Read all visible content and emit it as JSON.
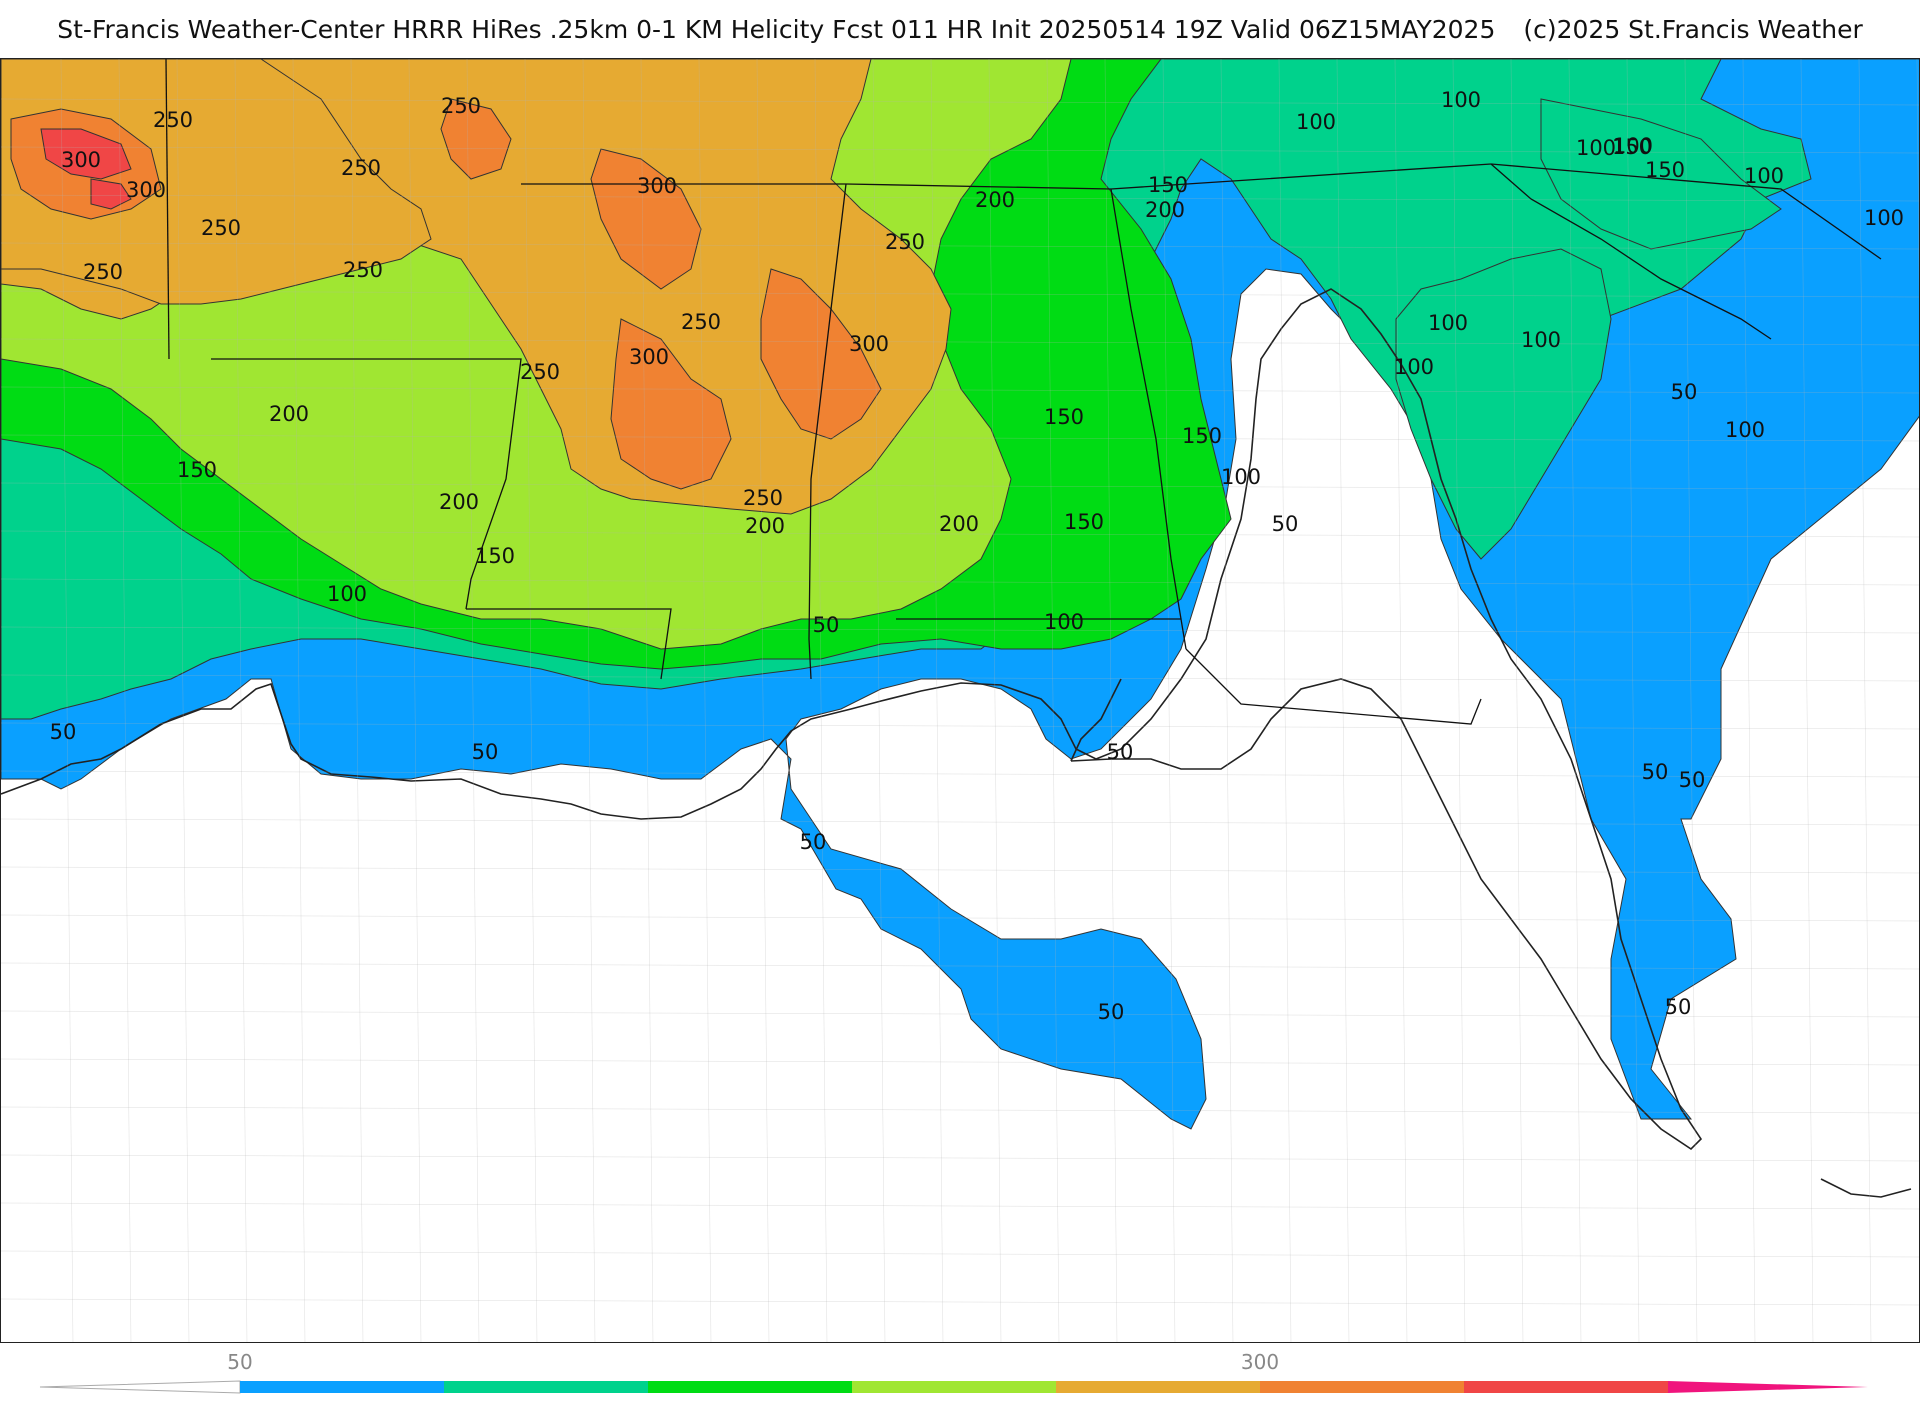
{
  "title": {
    "main": "St-Francis Weather-Center HRRR HiRes .25km 0-1 KM Helicity Fcst 011 HR Init 20250514 19Z  Valid 06Z15MAY2025",
    "copyright": "(c)2025 St.Francis Weather"
  },
  "colors": {
    "c50": "#0aa0ff",
    "c100": "#00d28c",
    "c150": "#00dc14",
    "c200": "#a0e632",
    "c250": "#e6aa32",
    "c300": "#f08232",
    "c350": "#f04646",
    "c400": "#f0147d",
    "land_outline": "#222222",
    "county_lines": "#b4b4b4",
    "state_lines": "#111111"
  },
  "contour_labels": [
    {
      "text": "250"
    },
    {
      "text": "250"
    },
    {
      "text": "300"
    },
    {
      "text": "300"
    },
    {
      "text": "250"
    },
    {
      "text": "250"
    },
    {
      "text": "250"
    },
    {
      "text": "300"
    },
    {
      "text": "250"
    },
    {
      "text": "250"
    },
    {
      "text": "300"
    },
    {
      "text": "300"
    },
    {
      "text": "250"
    },
    {
      "text": "250"
    },
    {
      "text": "200"
    },
    {
      "text": "200"
    },
    {
      "text": "200"
    },
    {
      "text": "150"
    },
    {
      "text": "200"
    },
    {
      "text": "150"
    },
    {
      "text": "100"
    },
    {
      "text": "250"
    },
    {
      "text": "200"
    },
    {
      "text": "200"
    },
    {
      "text": "150"
    },
    {
      "text": "150"
    },
    {
      "text": "150"
    },
    {
      "text": "150"
    },
    {
      "text": "100"
    },
    {
      "text": "50"
    },
    {
      "text": "100"
    },
    {
      "text": "100"
    },
    {
      "text": "100"
    },
    {
      "text": "150"
    },
    {
      "text": "100"
    },
    {
      "text": "100"
    },
    {
      "text": "100"
    },
    {
      "text": "100"
    },
    {
      "text": "100"
    },
    {
      "text": "50"
    },
    {
      "text": "100"
    },
    {
      "text": "100"
    },
    {
      "text": "50"
    },
    {
      "text": "50"
    },
    {
      "text": "50"
    },
    {
      "text": "50"
    },
    {
      "text": "50"
    },
    {
      "text": "50"
    },
    {
      "text": "50"
    },
    {
      "text": "50"
    },
    {
      "text": "50"
    },
    {
      "text": "100"
    },
    {
      "text": "150"
    }
  ],
  "legend": {
    "tick_labels": [
      "50",
      "300"
    ],
    "bins": [
      {
        "color": "#0aa0ff"
      },
      {
        "color": "#00d28c"
      },
      {
        "color": "#00dc14"
      },
      {
        "color": "#a0e632"
      },
      {
        "color": "#e6aa32"
      },
      {
        "color": "#f08232"
      },
      {
        "color": "#f04646"
      },
      {
        "color": "#f0147d"
      }
    ]
  }
}
